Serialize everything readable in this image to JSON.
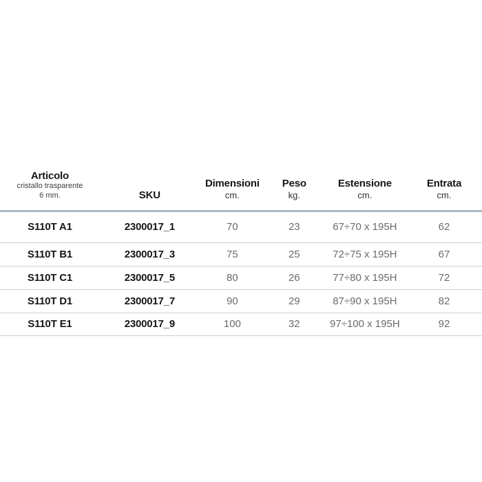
{
  "table": {
    "header": {
      "articolo": {
        "title": "Articolo",
        "subtitle_line1": "cristallo trasparente",
        "subtitle_line2": "6 mm."
      },
      "sku": {
        "title": "SKU"
      },
      "dimensioni": {
        "title": "Dimensioni",
        "unit": "cm."
      },
      "peso": {
        "title": "Peso",
        "unit": "kg."
      },
      "estensione": {
        "title": "Estensione",
        "unit": "cm."
      },
      "entrata": {
        "title": "Entrata",
        "unit": "cm."
      }
    },
    "rows": [
      {
        "articolo": "S110T A1",
        "sku": "2300017_1",
        "dimensioni": "70",
        "peso": "23",
        "estensione": "67÷70 x 195H",
        "entrata": "62"
      },
      {
        "articolo": "S110T B1",
        "sku": "2300017_3",
        "dimensioni": "75",
        "peso": "25",
        "estensione": "72÷75 x 195H",
        "entrata": "67"
      },
      {
        "articolo": "S110T C1",
        "sku": "2300017_5",
        "dimensioni": "80",
        "peso": "26",
        "estensione": "77÷80 x 195H",
        "entrata": "72"
      },
      {
        "articolo": "S110T D1",
        "sku": "2300017_7",
        "dimensioni": "90",
        "peso": "29",
        "estensione": "87÷90 x 195H",
        "entrata": "82"
      },
      {
        "articolo": "S110T E1",
        "sku": "2300017_9",
        "dimensioni": "100",
        "peso": "32",
        "estensione": "97÷100 x 195H",
        "entrata": "92"
      }
    ],
    "colors": {
      "header_rule": "#a8b9c6",
      "row_rule": "#cfcfcf",
      "text_dark": "#161616",
      "text_gray": "#6b6b6b",
      "background": "#ffffff"
    }
  }
}
